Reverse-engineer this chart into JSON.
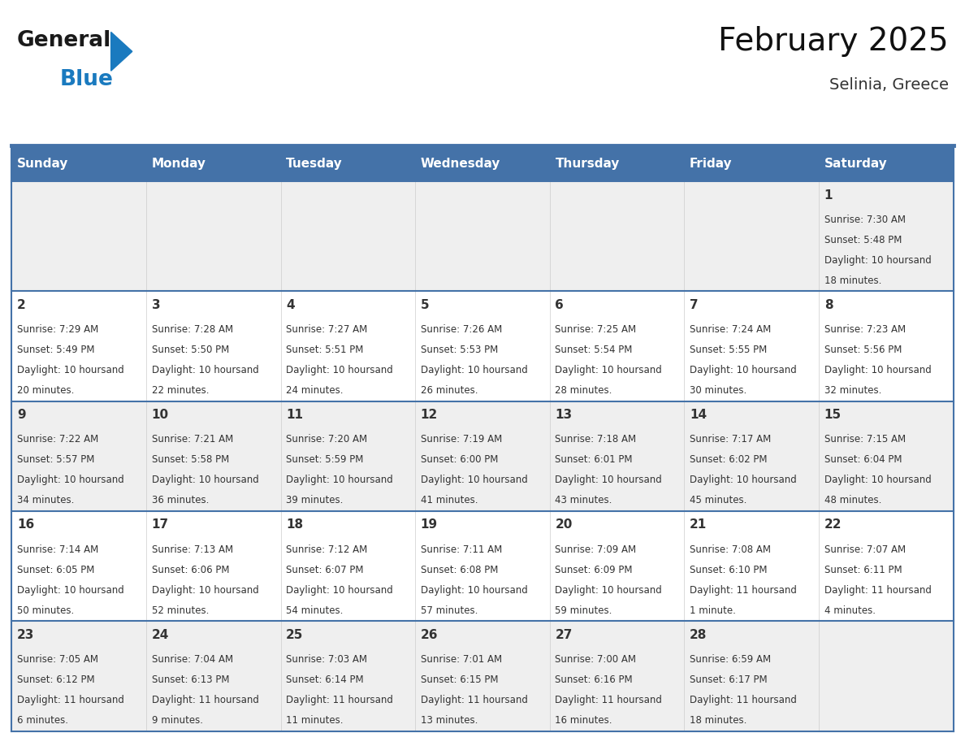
{
  "title": "February 2025",
  "subtitle": "Selinia, Greece",
  "header_bg": "#4472a8",
  "header_text_color": "#ffffff",
  "weekdays": [
    "Sunday",
    "Monday",
    "Tuesday",
    "Wednesday",
    "Thursday",
    "Friday",
    "Saturday"
  ],
  "row_bg_odd": "#efefef",
  "row_bg_even": "#ffffff",
  "date_color": "#333333",
  "info_color": "#333333",
  "separator_color": "#4472a8",
  "days": [
    {
      "day": 1,
      "col": 6,
      "row": 0,
      "sunrise": "7:30 AM",
      "sunset": "5:48 PM",
      "daylight": "10 hours and 18 minutes."
    },
    {
      "day": 2,
      "col": 0,
      "row": 1,
      "sunrise": "7:29 AM",
      "sunset": "5:49 PM",
      "daylight": "10 hours and 20 minutes."
    },
    {
      "day": 3,
      "col": 1,
      "row": 1,
      "sunrise": "7:28 AM",
      "sunset": "5:50 PM",
      "daylight": "10 hours and 22 minutes."
    },
    {
      "day": 4,
      "col": 2,
      "row": 1,
      "sunrise": "7:27 AM",
      "sunset": "5:51 PM",
      "daylight": "10 hours and 24 minutes."
    },
    {
      "day": 5,
      "col": 3,
      "row": 1,
      "sunrise": "7:26 AM",
      "sunset": "5:53 PM",
      "daylight": "10 hours and 26 minutes."
    },
    {
      "day": 6,
      "col": 4,
      "row": 1,
      "sunrise": "7:25 AM",
      "sunset": "5:54 PM",
      "daylight": "10 hours and 28 minutes."
    },
    {
      "day": 7,
      "col": 5,
      "row": 1,
      "sunrise": "7:24 AM",
      "sunset": "5:55 PM",
      "daylight": "10 hours and 30 minutes."
    },
    {
      "day": 8,
      "col": 6,
      "row": 1,
      "sunrise": "7:23 AM",
      "sunset": "5:56 PM",
      "daylight": "10 hours and 32 minutes."
    },
    {
      "day": 9,
      "col": 0,
      "row": 2,
      "sunrise": "7:22 AM",
      "sunset": "5:57 PM",
      "daylight": "10 hours and 34 minutes."
    },
    {
      "day": 10,
      "col": 1,
      "row": 2,
      "sunrise": "7:21 AM",
      "sunset": "5:58 PM",
      "daylight": "10 hours and 36 minutes."
    },
    {
      "day": 11,
      "col": 2,
      "row": 2,
      "sunrise": "7:20 AM",
      "sunset": "5:59 PM",
      "daylight": "10 hours and 39 minutes."
    },
    {
      "day": 12,
      "col": 3,
      "row": 2,
      "sunrise": "7:19 AM",
      "sunset": "6:00 PM",
      "daylight": "10 hours and 41 minutes."
    },
    {
      "day": 13,
      "col": 4,
      "row": 2,
      "sunrise": "7:18 AM",
      "sunset": "6:01 PM",
      "daylight": "10 hours and 43 minutes."
    },
    {
      "day": 14,
      "col": 5,
      "row": 2,
      "sunrise": "7:17 AM",
      "sunset": "6:02 PM",
      "daylight": "10 hours and 45 minutes."
    },
    {
      "day": 15,
      "col": 6,
      "row": 2,
      "sunrise": "7:15 AM",
      "sunset": "6:04 PM",
      "daylight": "10 hours and 48 minutes."
    },
    {
      "day": 16,
      "col": 0,
      "row": 3,
      "sunrise": "7:14 AM",
      "sunset": "6:05 PM",
      "daylight": "10 hours and 50 minutes."
    },
    {
      "day": 17,
      "col": 1,
      "row": 3,
      "sunrise": "7:13 AM",
      "sunset": "6:06 PM",
      "daylight": "10 hours and 52 minutes."
    },
    {
      "day": 18,
      "col": 2,
      "row": 3,
      "sunrise": "7:12 AM",
      "sunset": "6:07 PM",
      "daylight": "10 hours and 54 minutes."
    },
    {
      "day": 19,
      "col": 3,
      "row": 3,
      "sunrise": "7:11 AM",
      "sunset": "6:08 PM",
      "daylight": "10 hours and 57 minutes."
    },
    {
      "day": 20,
      "col": 4,
      "row": 3,
      "sunrise": "7:09 AM",
      "sunset": "6:09 PM",
      "daylight": "10 hours and 59 minutes."
    },
    {
      "day": 21,
      "col": 5,
      "row": 3,
      "sunrise": "7:08 AM",
      "sunset": "6:10 PM",
      "daylight": "11 hours and 1 minute."
    },
    {
      "day": 22,
      "col": 6,
      "row": 3,
      "sunrise": "7:07 AM",
      "sunset": "6:11 PM",
      "daylight": "11 hours and 4 minutes."
    },
    {
      "day": 23,
      "col": 0,
      "row": 4,
      "sunrise": "7:05 AM",
      "sunset": "6:12 PM",
      "daylight": "11 hours and 6 minutes."
    },
    {
      "day": 24,
      "col": 1,
      "row": 4,
      "sunrise": "7:04 AM",
      "sunset": "6:13 PM",
      "daylight": "11 hours and 9 minutes."
    },
    {
      "day": 25,
      "col": 2,
      "row": 4,
      "sunrise": "7:03 AM",
      "sunset": "6:14 PM",
      "daylight": "11 hours and 11 minutes."
    },
    {
      "day": 26,
      "col": 3,
      "row": 4,
      "sunrise": "7:01 AM",
      "sunset": "6:15 PM",
      "daylight": "11 hours and 13 minutes."
    },
    {
      "day": 27,
      "col": 4,
      "row": 4,
      "sunrise": "7:00 AM",
      "sunset": "6:16 PM",
      "daylight": "11 hours and 16 minutes."
    },
    {
      "day": 28,
      "col": 5,
      "row": 4,
      "sunrise": "6:59 AM",
      "sunset": "6:17 PM",
      "daylight": "11 hours and 18 minutes."
    }
  ],
  "num_rows": 5,
  "num_cols": 7,
  "logo_text_general": "General",
  "logo_text_blue": "Blue",
  "logo_color_general": "#1a1a1a",
  "logo_color_blue": "#1a7abf",
  "logo_triangle_color": "#1a7abf",
  "title_fontsize": 28,
  "subtitle_fontsize": 14,
  "header_fontsize": 11,
  "day_num_fontsize": 11,
  "info_fontsize": 8.5
}
